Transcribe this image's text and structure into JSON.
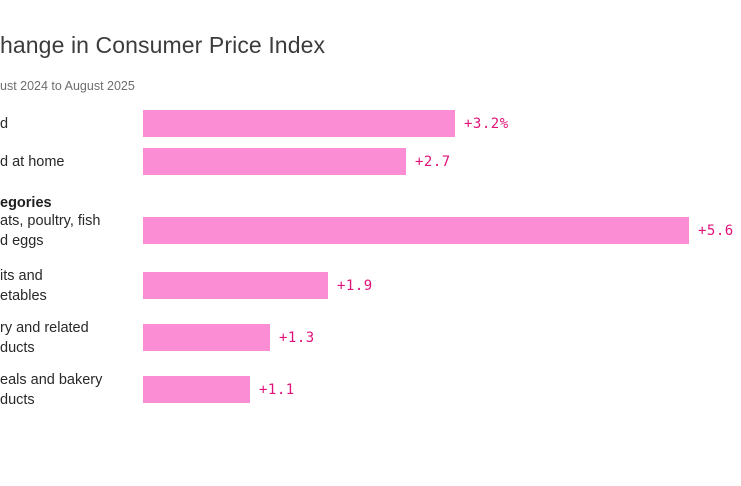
{
  "chart_data": {
    "type": "bar",
    "orientation": "horizontal",
    "title": "hange in Consumer Price Index",
    "subtitle": "ust 2024 to August 2025",
    "section_header": "egories",
    "categories": [
      "d",
      "d at home",
      "ats, poultry, fish d eggs",
      "its and etables",
      "ry and related ducts",
      "eals and bakery ducts"
    ],
    "values": [
      3.2,
      2.7,
      5.6,
      1.9,
      1.3,
      1.1
    ],
    "bars": [
      {
        "label_lines": [
          "d"
        ],
        "value": 3.2,
        "value_label": "+3.2%"
      },
      {
        "label_lines": [
          "d at home"
        ],
        "value": 2.7,
        "value_label": "+2.7"
      },
      {
        "label_lines": [
          "ats, poultry, fish",
          "d eggs"
        ],
        "value": 5.6,
        "value_label": "+5.6"
      },
      {
        "label_lines": [
          "its and",
          "etables"
        ],
        "value": 1.9,
        "value_label": "+1.9"
      },
      {
        "label_lines": [
          "ry and related",
          "ducts"
        ],
        "value": 1.3,
        "value_label": "+1.3"
      },
      {
        "label_lines": [
          "eals and bakery",
          "ducts"
        ],
        "value": 1.1,
        "value_label": "+1.1"
      }
    ],
    "xlim": [
      0,
      6.1
    ],
    "grid": false,
    "legend": "none",
    "colors": {
      "bar": "#fb8dd4",
      "value_text": "#e0127a",
      "title": "#3c3c3c",
      "subtitle": "#6e6e6e",
      "label": "#282828",
      "section_header": "#1f1f1f",
      "background": "#ffffff"
    }
  }
}
